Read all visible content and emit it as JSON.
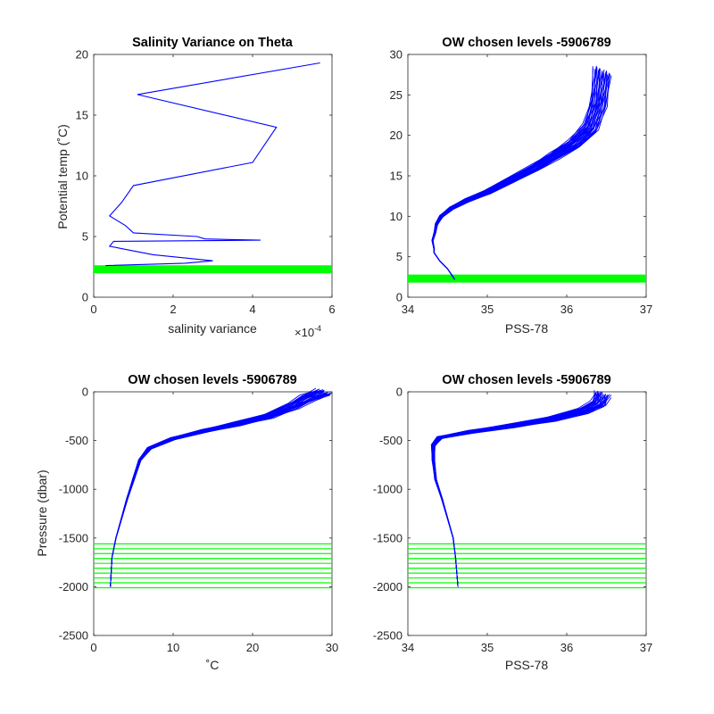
{
  "colors": {
    "axis": "#262626",
    "profile": "#0000ff",
    "level": "#00ff00",
    "background": "#ffffff"
  },
  "chart_data": [
    {
      "type": "line",
      "title": "Salinity Variance on Theta",
      "xlabel": "salinity variance",
      "ylabel": "Potential temp (˚C)",
      "xlim": [
        0,
        6
      ],
      "ylim": [
        0,
        20
      ],
      "xticks": [
        0,
        2,
        4,
        6
      ],
      "yticks": [
        0,
        5,
        10,
        15,
        20
      ],
      "xtick_labels": [
        "0",
        "2",
        "4",
        "6"
      ],
      "ytick_labels": [
        "0",
        "5",
        "10",
        "15",
        "20"
      ],
      "x_exponent_base": "×10",
      "x_exponent_power": "-4",
      "grid": false,
      "series": [
        {
          "x": [
            5.7,
            1.1,
            4.6,
            4.0,
            1.0,
            0.7,
            0.4,
            0.8,
            1.0,
            2.6,
            2.8,
            4.2,
            0.5,
            0.4,
            0.7,
            1.5,
            3.0,
            2.3,
            0.3
          ],
          "y": [
            19.3,
            16.7,
            14.0,
            11.1,
            9.2,
            7.8,
            6.7,
            5.9,
            5.3,
            5.0,
            4.8,
            4.7,
            4.6,
            4.2,
            4.0,
            3.5,
            3.0,
            2.8,
            2.6
          ]
        }
      ],
      "reference_lines": [
        {
          "y": 2.3
        }
      ]
    },
    {
      "type": "line",
      "title": "OW chosen levels -5906789",
      "xlabel": "PSS-78",
      "ylabel": "",
      "xlim": [
        34,
        37
      ],
      "ylim": [
        0,
        30
      ],
      "xticks": [
        34,
        35,
        36,
        37
      ],
      "yticks": [
        0,
        5,
        10,
        15,
        20,
        25,
        30
      ],
      "xtick_labels": [
        "34",
        "35",
        "36",
        "37"
      ],
      "ytick_labels": [
        "0",
        "5",
        "10",
        "15",
        "20",
        "25",
        "30"
      ],
      "grid": false,
      "series": [
        {
          "x": [
            34.59,
            34.5,
            34.4,
            34.33,
            34.33,
            34.31,
            34.34,
            34.36,
            34.42,
            34.55,
            34.75,
            35.0,
            35.3,
            35.6,
            35.85,
            36.1,
            36.3,
            36.4,
            36.45
          ],
          "y": [
            2.2,
            3.5,
            4.5,
            5.5,
            6.0,
            7.0,
            8.0,
            9.0,
            10.0,
            11.0,
            12.0,
            13.0,
            14.5,
            16.0,
            17.5,
            19.0,
            21.0,
            24.0,
            28.0
          ]
        }
      ],
      "reference_lines": [
        {
          "y": 2.3
        }
      ]
    },
    {
      "type": "line",
      "title": "OW chosen levels -5906789",
      "xlabel": "˚C",
      "ylabel": "Pressure (dbar)",
      "xlim": [
        0,
        30
      ],
      "ylim": [
        -2500,
        0
      ],
      "xticks": [
        0,
        10,
        20,
        30
      ],
      "yticks": [
        -2500,
        -2000,
        -1500,
        -1000,
        -500,
        0
      ],
      "xtick_labels": [
        "0",
        "10",
        "20",
        "30"
      ],
      "ytick_labels": [
        "-2500",
        "-2000",
        "-1500",
        "-1000",
        "-500",
        "0"
      ],
      "grid": false,
      "series": [
        {
          "x": [
            2.1,
            2.3,
            2.8,
            3.5,
            4.2,
            5.0,
            5.8,
            7.0,
            10.0,
            14.0,
            18.0,
            22.0,
            25.0,
            27.0,
            29.0
          ],
          "y": [
            -2000,
            -1700,
            -1500,
            -1300,
            -1100,
            -900,
            -700,
            -580,
            -480,
            -400,
            -330,
            -250,
            -150,
            -60,
            0
          ]
        }
      ],
      "reference_lines": [
        {
          "y": -1560
        },
        {
          "y": -1610
        },
        {
          "y": -1660
        },
        {
          "y": -1710
        },
        {
          "y": -1760
        },
        {
          "y": -1810
        },
        {
          "y": -1860
        },
        {
          "y": -1910
        },
        {
          "y": -1960
        },
        {
          "y": -2010
        }
      ]
    },
    {
      "type": "line",
      "title": "OW chosen levels -5906789",
      "xlabel": "PSS-78",
      "ylabel": "",
      "xlim": [
        34,
        37
      ],
      "ylim": [
        -2500,
        0
      ],
      "xticks": [
        34,
        35,
        36,
        37
      ],
      "yticks": [
        -2500,
        -2000,
        -1500,
        -1000,
        -500,
        0
      ],
      "xtick_labels": [
        "34",
        "35",
        "36",
        "37"
      ],
      "ytick_labels": [
        "-2500",
        "-2000",
        "-1500",
        "-1000",
        "-500",
        "0"
      ],
      "grid": false,
      "series": [
        {
          "x": [
            34.63,
            34.6,
            34.57,
            34.5,
            34.43,
            34.35,
            34.32,
            34.32,
            34.4,
            34.8,
            35.3,
            35.8,
            36.2,
            36.4,
            36.45
          ],
          "y": [
            -2000,
            -1700,
            -1500,
            -1300,
            -1100,
            -900,
            -700,
            -550,
            -470,
            -410,
            -350,
            -280,
            -200,
            -120,
            -20
          ]
        }
      ],
      "reference_lines": [
        {
          "y": -1560
        },
        {
          "y": -1610
        },
        {
          "y": -1660
        },
        {
          "y": -1710
        },
        {
          "y": -1760
        },
        {
          "y": -1810
        },
        {
          "y": -1860
        },
        {
          "y": -1910
        },
        {
          "y": -1960
        },
        {
          "y": -2010
        }
      ]
    }
  ]
}
